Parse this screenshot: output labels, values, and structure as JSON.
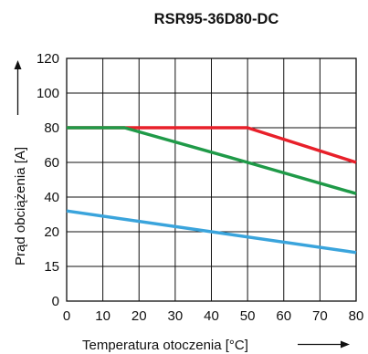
{
  "chart_data": {
    "type": "line",
    "title": "RSR95-36D80-DC",
    "xlabel": "Temperatura otoczenia [°C]",
    "ylabel": "Prąd obciążenia [A]",
    "x_ticks": [
      "0",
      "10",
      "20",
      "30",
      "40",
      "50",
      "60",
      "70",
      "80"
    ],
    "y_ticks": [
      "0",
      "15",
      "20",
      "40",
      "60",
      "80",
      "100",
      "120"
    ],
    "xlim": [
      0,
      80
    ],
    "grid": true,
    "series": [
      {
        "color": "#e8202a",
        "x": [
          0,
          50,
          80
        ],
        "y": [
          80,
          80,
          60
        ]
      },
      {
        "color": "#1f9a48",
        "x": [
          0,
          16,
          50,
          80
        ],
        "y": [
          80,
          80,
          60,
          42
        ]
      },
      {
        "color": "#3aa4dc",
        "x": [
          0,
          80
        ],
        "y": [
          32,
          17
        ]
      }
    ]
  }
}
